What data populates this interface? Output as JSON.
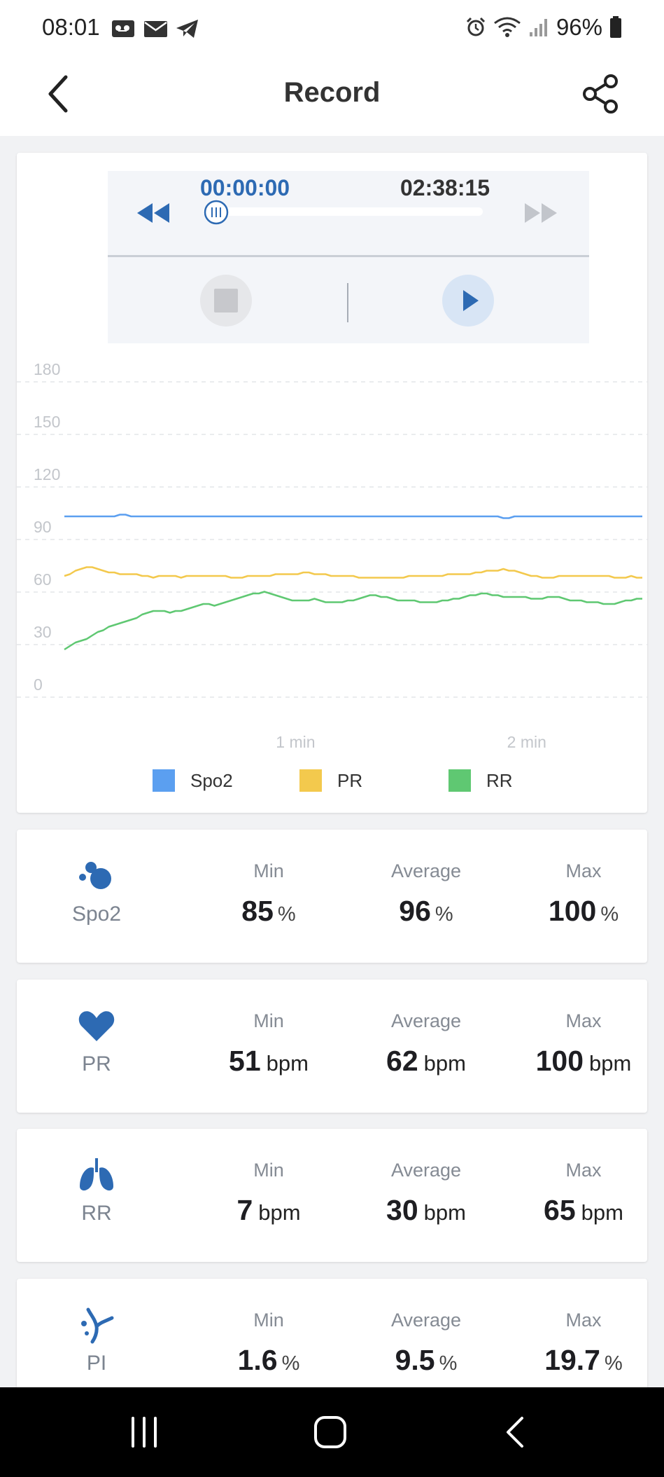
{
  "status_bar": {
    "time": "08:01",
    "battery": "96%",
    "notif_icons": [
      "voicemail-icon",
      "mail-icon",
      "telegram-icon"
    ],
    "system_icons": [
      "alarm-icon",
      "wifi-icon",
      "signal-icon",
      "battery-icon"
    ]
  },
  "app_bar": {
    "title": "Record"
  },
  "player": {
    "current_time": "00:00:00",
    "total_time": "02:38:15",
    "progress": 0
  },
  "colors": {
    "accent": "#2d6ab3",
    "spo2": "#5b9ff0",
    "pr": "#f3c94d",
    "rr": "#5fc872"
  },
  "chart_data": {
    "type": "line",
    "y_ticks": [
      "180",
      "150",
      "120",
      "90",
      "60",
      "30",
      "0"
    ],
    "y_range": [
      0,
      180
    ],
    "x_ticks": [
      {
        "label": "1 min",
        "minutes": 1
      },
      {
        "label": "2 min",
        "minutes": 2
      }
    ],
    "x_range_minutes": [
      0,
      2.5
    ],
    "grid": true,
    "legend_position": "bottom",
    "series": [
      {
        "name": "Spo2",
        "color": "#5b9ff0",
        "values": [
          96,
          96,
          96,
          96,
          96,
          96,
          96,
          96,
          96,
          96,
          97,
          97,
          96,
          96,
          96,
          96,
          96,
          96,
          96,
          96,
          96,
          96,
          96,
          96,
          96,
          96,
          96,
          96,
          96,
          96,
          96,
          96,
          96,
          96,
          96,
          96,
          96,
          96,
          96,
          96,
          96,
          96,
          96,
          96,
          96,
          96,
          96,
          96,
          96,
          96,
          96,
          96,
          96,
          96,
          96,
          96,
          96,
          96,
          96,
          96,
          96,
          96,
          96,
          96,
          96,
          96,
          96,
          96,
          96,
          96,
          96,
          96,
          96,
          96,
          96,
          96,
          96,
          96,
          96,
          95,
          95,
          96,
          96,
          96,
          96,
          96,
          96,
          96,
          96,
          96,
          96,
          96,
          96,
          96,
          96,
          96,
          96,
          96,
          96,
          96,
          96,
          96,
          96,
          96,
          96
        ]
      },
      {
        "name": "PR",
        "color": "#f3c94d",
        "values": [
          62,
          63,
          65,
          66,
          67,
          67,
          66,
          65,
          64,
          64,
          63,
          63,
          63,
          63,
          62,
          62,
          61,
          62,
          62,
          62,
          62,
          61,
          62,
          62,
          62,
          62,
          62,
          62,
          62,
          62,
          61,
          61,
          61,
          62,
          62,
          62,
          62,
          62,
          63,
          63,
          63,
          63,
          63,
          64,
          64,
          63,
          63,
          63,
          62,
          62,
          62,
          62,
          62,
          61,
          61,
          61,
          61,
          61,
          61,
          61,
          61,
          61,
          62,
          62,
          62,
          62,
          62,
          62,
          62,
          63,
          63,
          63,
          63,
          63,
          64,
          64,
          65,
          65,
          65,
          66,
          65,
          65,
          64,
          63,
          62,
          62,
          61,
          61,
          61,
          62,
          62,
          62,
          62,
          62,
          62,
          62,
          62,
          62,
          62,
          61,
          61,
          61,
          62,
          61,
          61
        ]
      },
      {
        "name": "RR",
        "color": "#5fc872",
        "values": [
          20,
          22,
          24,
          25,
          26,
          28,
          30,
          31,
          33,
          34,
          35,
          36,
          37,
          38,
          40,
          41,
          42,
          42,
          42,
          41,
          42,
          42,
          43,
          44,
          45,
          46,
          46,
          45,
          46,
          47,
          48,
          49,
          50,
          51,
          52,
          52,
          53,
          52,
          51,
          50,
          49,
          48,
          48,
          48,
          48,
          49,
          48,
          47,
          47,
          47,
          47,
          48,
          48,
          49,
          50,
          51,
          51,
          50,
          50,
          49,
          48,
          48,
          48,
          48,
          47,
          47,
          47,
          47,
          48,
          48,
          49,
          49,
          50,
          51,
          51,
          52,
          52,
          51,
          51,
          50,
          50,
          50,
          50,
          50,
          49,
          49,
          49,
          50,
          50,
          50,
          49,
          48,
          48,
          48,
          47,
          47,
          47,
          46,
          46,
          46,
          47,
          48,
          48,
          49,
          49
        ]
      }
    ]
  },
  "legend": [
    {
      "name": "Spo2",
      "color": "#5b9ff0"
    },
    {
      "name": "PR",
      "color": "#f3c94d"
    },
    {
      "name": "RR",
      "color": "#5fc872"
    }
  ],
  "stats": {
    "headers": {
      "min": "Min",
      "avg": "Average",
      "max": "Max"
    },
    "spo2": {
      "name": "Spo2",
      "icon": "oxygen-bubbles-icon",
      "min": "85",
      "avg": "96",
      "max": "100",
      "unit": "%"
    },
    "pr": {
      "name": "PR",
      "icon": "heart-icon",
      "min": "51",
      "avg": "62",
      "max": "100",
      "unit": "bpm"
    },
    "rr": {
      "name": "RR",
      "icon": "lungs-icon",
      "min": "7",
      "avg": "30",
      "max": "65",
      "unit": "bpm"
    },
    "pi": {
      "name": "PI",
      "icon": "perfusion-icon",
      "min": "1.6",
      "avg": "9.5",
      "max": "19.7",
      "unit": "%"
    }
  },
  "nav_bar": {
    "icons": [
      "recent-apps-icon",
      "home-icon",
      "back-nav-icon"
    ]
  }
}
